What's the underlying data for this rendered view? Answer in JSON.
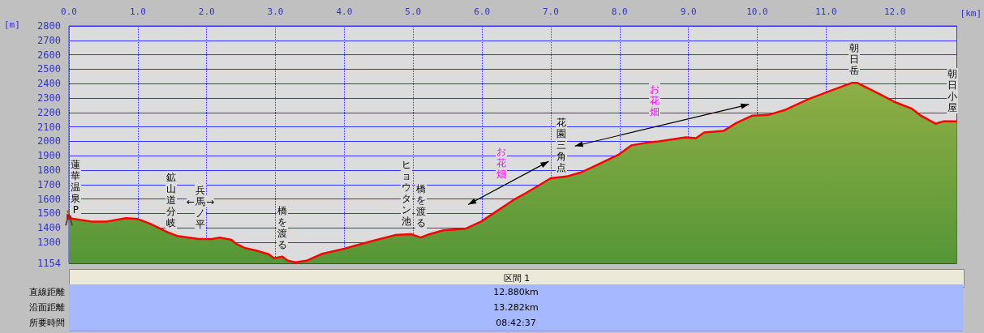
{
  "chart_data": {
    "type": "area",
    "xlabel": "[km]",
    "ylabel": "[m]",
    "xlim": [
      0,
      12.9
    ],
    "ylim": [
      1154,
      2800
    ],
    "xticks": [
      {
        "value": 0,
        "label": "0.0"
      },
      {
        "value": 1,
        "label": "1.0"
      },
      {
        "value": 2,
        "label": "2.0"
      },
      {
        "value": 3,
        "label": "3.0"
      },
      {
        "value": 4,
        "label": "4.0"
      },
      {
        "value": 5,
        "label": "5.0"
      },
      {
        "value": 6,
        "label": "6.0"
      },
      {
        "value": 7,
        "label": "7.0"
      },
      {
        "value": 8,
        "label": "8.0"
      },
      {
        "value": 9,
        "label": "9.0"
      },
      {
        "value": 10,
        "label": "10.0"
      },
      {
        "value": 11,
        "label": "11.0"
      },
      {
        "value": 12,
        "label": "12.0"
      }
    ],
    "yticks": [
      1154,
      1300,
      1400,
      1500,
      1600,
      1700,
      1800,
      1900,
      2000,
      2100,
      2200,
      2300,
      2400,
      2500,
      2600,
      2700,
      2800
    ],
    "grid": true,
    "marker": "none",
    "line_style": "solid",
    "series": [
      {
        "color": "#ff0000",
        "x": [
          0,
          0.32,
          0.55,
          0.83,
          1.0,
          1.18,
          1.42,
          1.57,
          1.89,
          2.08,
          2.19,
          2.36,
          2.43,
          2.55,
          2.71,
          2.9,
          2.98,
          3.1,
          3.18,
          3.29,
          3.45,
          3.68,
          4.0,
          4.38,
          4.74,
          4.97,
          5.11,
          5.24,
          5.44,
          5.76,
          5.99,
          6.22,
          6.46,
          6.65,
          7.0,
          7.23,
          7.43,
          7.59,
          7.98,
          8.17,
          8.37,
          8.57,
          8.96,
          9.11,
          9.23,
          9.51,
          9.7,
          9.93,
          10.16,
          10.4,
          10.75,
          11.03,
          11.38,
          11.45,
          11.8,
          12.0,
          12.24,
          12.36,
          12.59,
          12.71,
          12.9
        ],
        "values": [
          1467,
          1444,
          1444,
          1467,
          1461,
          1428,
          1372,
          1344,
          1322,
          1322,
          1333,
          1317,
          1289,
          1261,
          1244,
          1217,
          1189,
          1200,
          1172,
          1161,
          1172,
          1220,
          1256,
          1306,
          1350,
          1356,
          1333,
          1356,
          1383,
          1394,
          1444,
          1517,
          1594,
          1644,
          1744,
          1756,
          1783,
          1817,
          1906,
          1972,
          1989,
          2000,
          2028,
          2022,
          2061,
          2072,
          2128,
          2178,
          2183,
          2217,
          2294,
          2344,
          2406,
          2406,
          2322,
          2272,
          2228,
          2183,
          2122,
          2139,
          2139
        ]
      }
    ],
    "annotations": [
      "蓮華温泉P",
      "鉱山道分岐",
      "←兵馬ノ平→",
      "橋を渡る",
      "ヒョウタン池",
      "橋を渡る",
      "お花畑",
      "花園三角点",
      "お花畑",
      "朝日岳",
      "朝日小屋",
      "区間 1",
      "直線距離",
      "12.880km",
      "沿面距離",
      "13.282km",
      "所要時間",
      "08:42:37"
    ]
  }
}
